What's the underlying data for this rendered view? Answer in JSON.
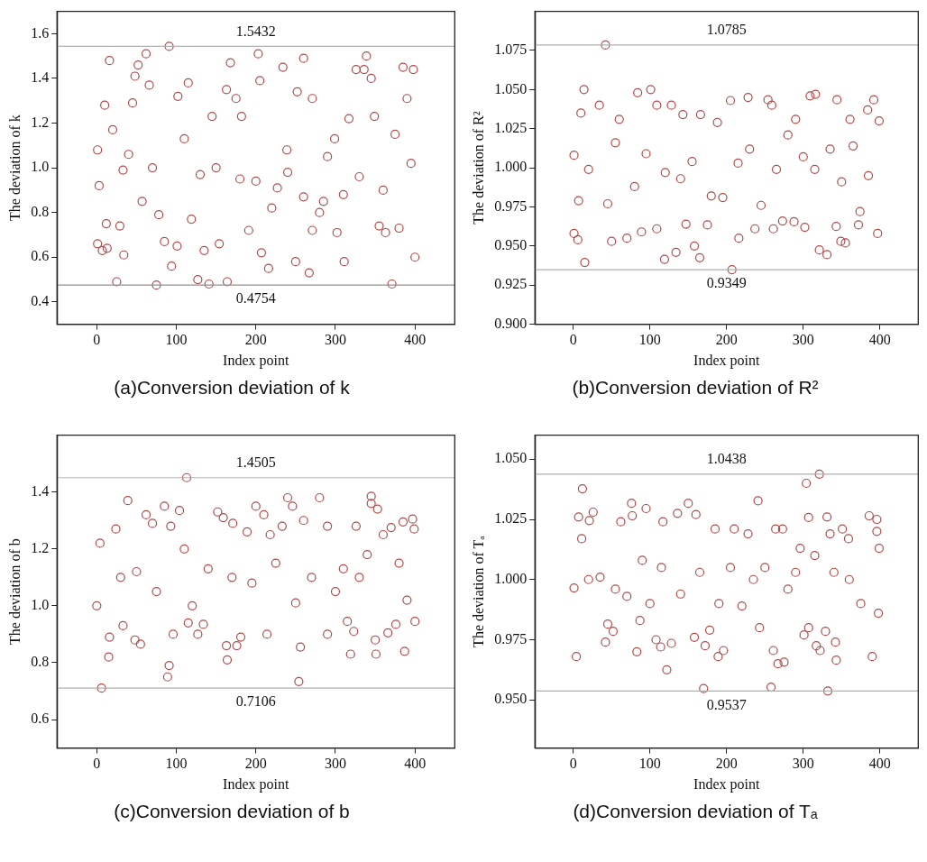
{
  "chart_data": [
    {
      "type": "scatter",
      "title": "(a)Conversion deviation of k",
      "xlabel": "Index point",
      "ylabel": "The deviation of k",
      "color": "#b04a4a",
      "marker": "circle",
      "xlim": [
        -50,
        450
      ],
      "xticks": [
        0,
        100,
        200,
        300,
        400
      ],
      "ylim": [
        0.3,
        1.7
      ],
      "yticks": [
        0.4,
        0.6,
        0.8,
        {
          "value": 1,
          "label": "1.0"
        },
        1.2,
        1.4,
        1.6
      ],
      "ref_lines": [
        {
          "axis": "y",
          "value": 1.5432,
          "label": "1.5432",
          "color": "#b0b0b0"
        },
        {
          "axis": "y",
          "value": 0.4754,
          "label": "0.4754",
          "color": "#909090"
        }
      ],
      "x": [
        1,
        3,
        1,
        7,
        10,
        16,
        13,
        12,
        20,
        25,
        29,
        34,
        33,
        40,
        45,
        48,
        52,
        57,
        62,
        66,
        70,
        75,
        78,
        85,
        91,
        94,
        102,
        101,
        110,
        115,
        119,
        127,
        130,
        135,
        141,
        145,
        150,
        154,
        163,
        164,
        168,
        175,
        180,
        182,
        191,
        200,
        203,
        205,
        207,
        216,
        220,
        227,
        234,
        239,
        240,
        250,
        252,
        260,
        260,
        267,
        271,
        271,
        280,
        285,
        290,
        299,
        302,
        310,
        311,
        317,
        326,
        330,
        336,
        339,
        345,
        349,
        355,
        360,
        363,
        371,
        375,
        380,
        385,
        390,
        395,
        398,
        400
      ],
      "values": [
        1.08,
        0.92,
        0.66,
        0.63,
        1.28,
        1.48,
        0.64,
        0.75,
        1.17,
        0.49,
        0.74,
        0.61,
        0.99,
        1.06,
        1.29,
        1.41,
        1.46,
        0.85,
        1.51,
        1.37,
        1.0,
        0.4754,
        0.79,
        0.67,
        1.5432,
        0.56,
        1.32,
        0.65,
        1.13,
        1.38,
        0.77,
        0.5,
        0.97,
        0.63,
        0.48,
        1.23,
        1.0,
        0.66,
        1.35,
        0.49,
        1.47,
        1.31,
        0.95,
        1.23,
        0.72,
        0.94,
        1.51,
        1.39,
        0.62,
        0.55,
        0.82,
        0.91,
        1.45,
        1.08,
        0.98,
        0.58,
        1.34,
        1.49,
        0.87,
        0.53,
        1.31,
        0.72,
        0.8,
        0.85,
        1.05,
        1.13,
        0.71,
        0.88,
        0.58,
        1.22,
        1.44,
        0.96,
        1.44,
        1.5,
        1.4,
        1.23,
        0.74,
        0.9,
        0.71,
        0.48,
        1.15,
        0.73,
        1.45,
        1.31,
        1.02,
        1.44,
        0.6
      ]
    },
    {
      "type": "scatter",
      "title": "(b)Conversion deviation of R²",
      "xlabel": "Index point",
      "ylabel": "The deviation of R²",
      "color": "#b04a4a",
      "marker": "circle",
      "xlim": [
        -50,
        450
      ],
      "xticks": [
        0,
        100,
        200,
        300,
        400
      ],
      "ylim": [
        0.9,
        1.1
      ],
      "yticks": [
        {
          "value": 0.9,
          "label": "0.900"
        },
        0.925,
        {
          "value": 0.95,
          "label": "0.950"
        },
        0.975,
        {
          "value": 1,
          "label": "1.000"
        },
        1.025,
        {
          "value": 1.05,
          "label": "1.050"
        },
        1.075
      ],
      "ref_lines": [
        {
          "axis": "y",
          "value": 1.0785,
          "label": "1.0785",
          "color": "#b0b0b0"
        },
        {
          "axis": "y",
          "value": 0.9349,
          "label": "0.9349",
          "color": "#b0b0b0"
        }
      ],
      "x": [
        1,
        1,
        6,
        7,
        10,
        14,
        15,
        20,
        34,
        42,
        45,
        50,
        55,
        60,
        70,
        80,
        84,
        89,
        95,
        101,
        109,
        109,
        119,
        120,
        128,
        134,
        140,
        143,
        147,
        155,
        158,
        165,
        166,
        175,
        180,
        188,
        195,
        205,
        207,
        215,
        216,
        228,
        230,
        237,
        245,
        254,
        259,
        261,
        265,
        273,
        280,
        288,
        290,
        300,
        302,
        309,
        315,
        316,
        321,
        331,
        335,
        343,
        344,
        349,
        350,
        355,
        361,
        365,
        372,
        374,
        384,
        385,
        392,
        397,
        399
      ],
      "values": [
        1.008,
        0.958,
        0.954,
        0.979,
        1.035,
        1.05,
        0.9395,
        0.999,
        1.04,
        1.0785,
        0.977,
        0.953,
        1.016,
        1.031,
        0.955,
        0.988,
        1.048,
        0.959,
        1.009,
        1.05,
        1.04,
        0.961,
        0.9415,
        0.997,
        1.04,
        0.946,
        0.993,
        1.034,
        0.964,
        1.004,
        0.95,
        0.9425,
        1.034,
        0.9635,
        0.982,
        1.029,
        0.981,
        1.043,
        0.9349,
        1.003,
        0.955,
        1.045,
        1.012,
        0.961,
        0.976,
        1.0435,
        1.04,
        0.961,
        0.999,
        0.966,
        1.021,
        0.9655,
        1.031,
        1.007,
        0.962,
        1.046,
        0.999,
        1.047,
        0.9475,
        0.9445,
        1.012,
        0.9625,
        1.0435,
        0.953,
        0.991,
        0.952,
        1.031,
        1.014,
        0.9635,
        0.972,
        1.037,
        0.995,
        1.0435,
        0.958,
        1.03
      ]
    },
    {
      "type": "scatter",
      "title": "(c)Conversion deviation of b",
      "xlabel": "Index point",
      "ylabel": "The deviation of b",
      "color": "#b04a4a",
      "marker": "circle",
      "xlim": [
        -50,
        450
      ],
      "xticks": [
        0,
        100,
        200,
        300,
        400
      ],
      "ylim": [
        0.5,
        1.6
      ],
      "yticks": [
        0.6,
        0.8,
        {
          "value": 1,
          "label": "1.0"
        },
        1.2,
        1.4
      ],
      "ref_lines": [
        {
          "axis": "y",
          "value": 1.4505,
          "label": "1.4505",
          "color": "#b0b0b0"
        },
        {
          "axis": "y",
          "value": 0.7106,
          "label": "0.7106",
          "color": "#b0b0b0"
        }
      ],
      "x": [
        0,
        4,
        6,
        15,
        16,
        24,
        30,
        33,
        39,
        48,
        50,
        55,
        62,
        70,
        75,
        85,
        89,
        91,
        93,
        96,
        104,
        110,
        113,
        115,
        120,
        127,
        134,
        140,
        152,
        159,
        163,
        164,
        170,
        171,
        176,
        181,
        189,
        195,
        200,
        210,
        214,
        218,
        225,
        233,
        240,
        246,
        250,
        254,
        256,
        260,
        270,
        280,
        290,
        290,
        300,
        310,
        315,
        319,
        323,
        326,
        330,
        340,
        345,
        345,
        350,
        351,
        353,
        360,
        366,
        370,
        376,
        380,
        385,
        387,
        390,
        397,
        399,
        400
      ],
      "values": [
        1.0,
        1.22,
        0.7106,
        0.82,
        0.89,
        1.27,
        1.1,
        0.93,
        1.37,
        0.88,
        1.12,
        0.865,
        1.32,
        1.29,
        1.05,
        1.35,
        0.75,
        0.79,
        1.28,
        0.9,
        1.335,
        1.2,
        1.4505,
        0.94,
        1.0,
        0.9,
        0.935,
        1.13,
        1.33,
        1.31,
        0.86,
        0.81,
        1.1,
        1.29,
        0.86,
        0.89,
        1.26,
        1.08,
        1.35,
        1.32,
        0.9,
        1.25,
        1.15,
        1.28,
        1.38,
        1.35,
        1.01,
        0.734,
        0.855,
        1.3,
        1.1,
        1.38,
        0.9,
        1.28,
        1.05,
        1.13,
        0.945,
        0.83,
        0.91,
        1.28,
        1.1,
        1.18,
        1.385,
        1.36,
        0.88,
        0.83,
        1.34,
        1.25,
        0.905,
        1.275,
        0.935,
        1.15,
        1.295,
        0.84,
        1.02,
        1.305,
        1.27,
        0.945
      ]
    },
    {
      "type": "scatter",
      "title": "(d)Conversion deviation of Tₐ",
      "xlabel": "Index point",
      "ylabel": "The deviation of Tₐ",
      "color": "#b04a4a",
      "marker": "circle",
      "xlim": [
        -50,
        450
      ],
      "xticks": [
        0,
        100,
        200,
        300,
        400
      ],
      "ylim": [
        0.93,
        1.06
      ],
      "yticks": [
        {
          "value": 0.95,
          "label": "0.950"
        },
        0.975,
        {
          "value": 1,
          "label": "1.000"
        },
        1.025,
        {
          "value": 1.05,
          "label": "1.050"
        }
      ],
      "ref_lines": [
        {
          "axis": "y",
          "value": 1.0438,
          "label": "1.0438",
          "color": "#b0b0b0"
        },
        {
          "axis": "y",
          "value": 0.9537,
          "label": "0.9537",
          "color": "#b0b0b0"
        }
      ],
      "x": [
        1,
        4,
        7,
        11,
        12,
        20,
        21,
        26,
        35,
        42,
        45,
        52,
        55,
        62,
        70,
        76,
        77,
        83,
        87,
        90,
        95,
        100,
        108,
        114,
        115,
        117,
        122,
        128,
        136,
        140,
        150,
        158,
        160,
        165,
        170,
        172,
        178,
        185,
        189,
        190,
        196,
        205,
        210,
        220,
        228,
        235,
        241,
        243,
        250,
        258,
        261,
        264,
        267,
        273,
        275,
        280,
        290,
        296,
        301,
        304,
        307,
        307,
        315,
        317,
        321,
        322,
        329,
        331,
        332,
        335,
        340,
        342,
        343,
        351,
        359,
        360,
        375,
        386,
        390,
        396,
        396,
        398,
        399
      ],
      "values": [
        0.9965,
        0.968,
        1.026,
        1.017,
        1.0377,
        1.0,
        1.0245,
        1.028,
        1.001,
        0.974,
        0.9815,
        0.9785,
        0.996,
        1.024,
        0.993,
        1.0317,
        1.0265,
        0.97,
        0.983,
        1.008,
        1.0295,
        0.99,
        0.975,
        0.972,
        1.005,
        1.024,
        0.9625,
        0.9735,
        1.0275,
        0.994,
        1.0317,
        0.976,
        1.027,
        1.003,
        0.9547,
        0.9725,
        0.979,
        1.021,
        0.968,
        0.99,
        0.9705,
        1.005,
        1.021,
        0.989,
        1.019,
        1.0,
        1.0327,
        0.98,
        1.005,
        0.9553,
        0.9705,
        1.021,
        0.965,
        1.021,
        0.9657,
        0.996,
        1.003,
        1.013,
        0.977,
        1.04,
        1.0258,
        0.98,
        1.01,
        0.9725,
        1.0438,
        0.9705,
        0.9785,
        1.026,
        0.9537,
        1.019,
        1.003,
        0.974,
        0.9665,
        1.021,
        1.017,
        1.0,
        0.99,
        1.0265,
        0.968,
        1.025,
        1.02,
        0.986,
        1.013
      ]
    }
  ]
}
